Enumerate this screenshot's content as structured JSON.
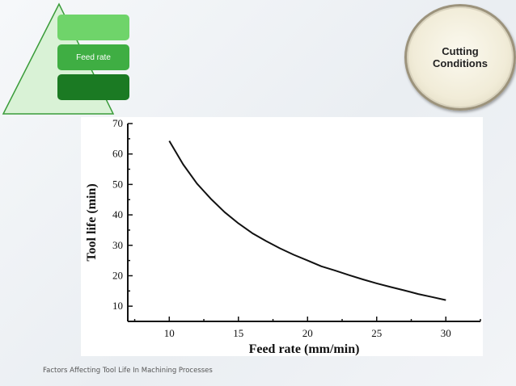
{
  "slide": {
    "stack": {
      "top_label": "",
      "middle_label": "Feed rate",
      "bottom_label": ""
    },
    "badge": {
      "text": "Cutting\nConditions"
    },
    "footer": "Factors Affecting Tool Life In Machining Processes",
    "colors": {
      "stack_top": "#6fd46a",
      "stack_middle": "#3fae43",
      "stack_bottom": "#1b7a23",
      "triangle_fill": "#d9f2d6",
      "triangle_stroke": "#3a9c3a"
    }
  },
  "chart_data": {
    "type": "line",
    "title": "",
    "xlabel": "Feed rate (mm/min)",
    "ylabel": "Tool life (min)",
    "xlim": [
      7,
      32.5
    ],
    "ylim": [
      5,
      70
    ],
    "xticks": [
      10,
      15,
      20,
      25,
      30
    ],
    "yticks": [
      10,
      20,
      30,
      40,
      50,
      60,
      70
    ],
    "grid": false,
    "series": [
      {
        "x": [
          10,
          11,
          12,
          13,
          14,
          15,
          16,
          17,
          18,
          19,
          20,
          21,
          22,
          23,
          24,
          25,
          26,
          27,
          28,
          29,
          30
        ],
        "y": [
          64.3,
          56.6,
          50.3,
          45.3,
          40.9,
          37.2,
          34.0,
          31.4,
          29.0,
          26.9,
          25.0,
          23.1,
          21.7,
          20.2,
          18.8,
          17.5,
          16.3,
          15.2,
          14.0,
          13.0,
          12.0
        ]
      }
    ]
  }
}
